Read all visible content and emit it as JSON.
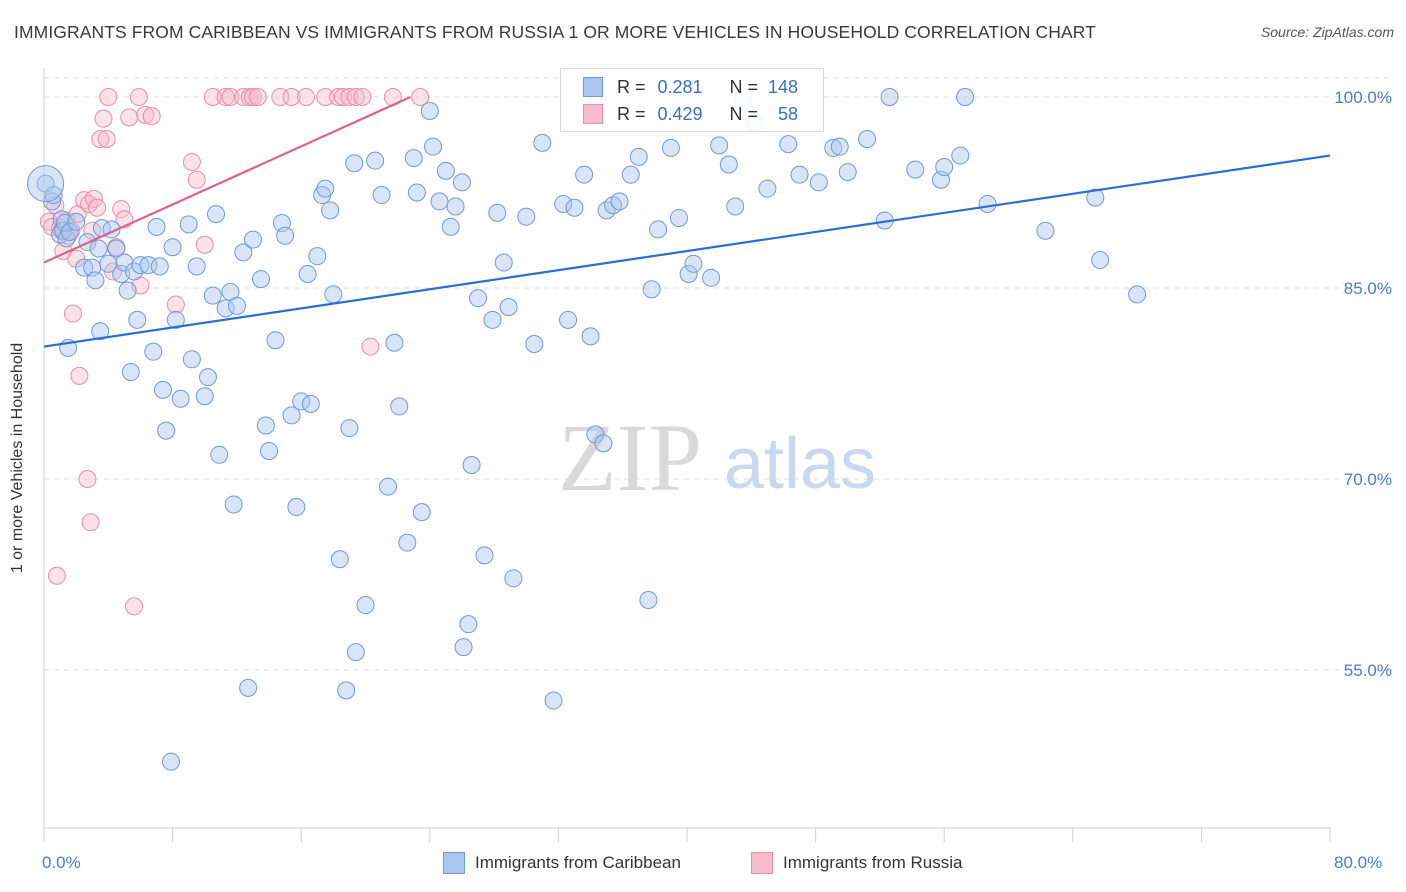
{
  "title": "IMMIGRANTS FROM CARIBBEAN VS IMMIGRANTS FROM RUSSIA 1 OR MORE VEHICLES IN HOUSEHOLD CORRELATION CHART",
  "source": "Source: ZipAtlas.com",
  "watermark": {
    "zip": "ZIP",
    "atlas": "atlas"
  },
  "legend": {
    "r_label": "R =",
    "n_label": "N =",
    "rows": [
      {
        "r": "0.281",
        "n": "148"
      },
      {
        "r": "0.429",
        "n": "58"
      }
    ]
  },
  "colors": {
    "blue_fill": "#aac6ee",
    "blue_stroke": "#6f9ad8",
    "blue_line": "#2a6fd0",
    "pink_fill": "#f6bccd",
    "pink_stroke": "#e98eab",
    "pink_line": "#e0608e",
    "tick_text": "#4a7cd0"
  },
  "chart_data": {
    "type": "scatter",
    "title": "IMMIGRANTS FROM CARIBBEAN VS IMMIGRANTS FROM RUSSIA 1 OR MORE VEHICLES IN HOUSEHOLD CORRELATION CHART",
    "xlabel": "",
    "ylabel": "1 or more Vehicles in Household",
    "xlim": [
      0,
      80
    ],
    "ylim": [
      42,
      101.5
    ],
    "x_tick_labels": [
      "0.0%",
      "80.0%"
    ],
    "y_ticks": [
      55,
      70,
      85,
      100
    ],
    "y_tick_labels": [
      "55.0%",
      "70.0%",
      "85.0%",
      "100.0%"
    ],
    "grid": "horizontal dashed",
    "legend_position": "top-center",
    "series": [
      {
        "name": "Immigrants from Caribbean",
        "color": "#aac6ee",
        "R": 0.281,
        "N": 148,
        "trend": {
          "x": [
            0,
            80
          ],
          "y": [
            80.4,
            95.4
          ]
        },
        "points": [
          [
            0.1,
            93.2
          ],
          [
            0.5,
            91.8
          ],
          [
            0.6,
            92.3
          ],
          [
            1.0,
            89.2
          ],
          [
            1.1,
            90.4
          ],
          [
            1.2,
            89.5
          ],
          [
            1.3,
            90.1
          ],
          [
            1.4,
            88.9
          ],
          [
            1.5,
            80.3
          ],
          [
            1.6,
            89.4
          ],
          [
            2.0,
            90.2
          ],
          [
            2.5,
            86.6
          ],
          [
            2.7,
            88.6
          ],
          [
            3.0,
            86.6
          ],
          [
            3.2,
            85.6
          ],
          [
            3.4,
            88.1
          ],
          [
            3.5,
            81.6
          ],
          [
            3.6,
            89.7
          ],
          [
            4.0,
            86.9
          ],
          [
            4.2,
            89.6
          ],
          [
            4.5,
            88.1
          ],
          [
            4.8,
            86.1
          ],
          [
            5.0,
            87.0
          ],
          [
            5.2,
            84.8
          ],
          [
            5.4,
            78.4
          ],
          [
            5.6,
            86.3
          ],
          [
            5.8,
            82.5
          ],
          [
            6.0,
            86.8
          ],
          [
            6.5,
            86.8
          ],
          [
            6.8,
            80.0
          ],
          [
            7.0,
            89.8
          ],
          [
            7.2,
            86.7
          ],
          [
            7.4,
            77.0
          ],
          [
            7.6,
            73.8
          ],
          [
            8.0,
            88.2
          ],
          [
            8.2,
            82.5
          ],
          [
            8.5,
            76.3
          ],
          [
            9.0,
            90.0
          ],
          [
            9.2,
            79.4
          ],
          [
            9.5,
            86.7
          ],
          [
            10.0,
            76.5
          ],
          [
            10.2,
            78.0
          ],
          [
            10.5,
            84.4
          ],
          [
            10.7,
            90.8
          ],
          [
            10.9,
            71.9
          ],
          [
            11.3,
            83.4
          ],
          [
            11.6,
            84.7
          ],
          [
            11.8,
            68.0
          ],
          [
            12.0,
            83.6
          ],
          [
            12.4,
            87.8
          ],
          [
            12.7,
            53.6
          ],
          [
            13.0,
            88.8
          ],
          [
            13.5,
            85.7
          ],
          [
            13.8,
            74.2
          ],
          [
            14.0,
            72.2
          ],
          [
            14.4,
            80.9
          ],
          [
            14.8,
            90.1
          ],
          [
            15.0,
            89.1
          ],
          [
            15.4,
            75.0
          ],
          [
            15.7,
            67.8
          ],
          [
            16.0,
            76.1
          ],
          [
            16.4,
            86.1
          ],
          [
            16.6,
            75.9
          ],
          [
            17.0,
            87.5
          ],
          [
            17.3,
            92.3
          ],
          [
            17.5,
            92.8
          ],
          [
            17.8,
            91.1
          ],
          [
            18.0,
            84.5
          ],
          [
            18.4,
            63.7
          ],
          [
            18.8,
            53.4
          ],
          [
            19.0,
            74.0
          ],
          [
            19.3,
            94.8
          ],
          [
            20.0,
            60.1
          ],
          [
            20.6,
            95.0
          ],
          [
            21.0,
            92.3
          ],
          [
            21.4,
            69.4
          ],
          [
            21.8,
            80.7
          ],
          [
            22.1,
            75.7
          ],
          [
            22.6,
            65.0
          ],
          [
            23.0,
            95.2
          ],
          [
            23.2,
            92.5
          ],
          [
            23.5,
            67.4
          ],
          [
            24.0,
            98.9
          ],
          [
            24.2,
            96.1
          ],
          [
            24.6,
            91.8
          ],
          [
            25.0,
            94.2
          ],
          [
            25.3,
            89.8
          ],
          [
            25.6,
            91.4
          ],
          [
            26.0,
            93.3
          ],
          [
            26.6,
            71.1
          ],
          [
            27.0,
            84.2
          ],
          [
            27.4,
            64.0
          ],
          [
            27.9,
            82.5
          ],
          [
            28.2,
            90.9
          ],
          [
            28.6,
            87.0
          ],
          [
            28.9,
            83.5
          ],
          [
            29.2,
            62.2
          ],
          [
            30.0,
            90.6
          ],
          [
            30.5,
            80.6
          ],
          [
            31.0,
            96.4
          ],
          [
            31.7,
            52.6
          ],
          [
            32.3,
            91.6
          ],
          [
            32.6,
            82.5
          ],
          [
            33.0,
            91.3
          ],
          [
            33.6,
            93.9
          ],
          [
            34.0,
            81.2
          ],
          [
            34.3,
            73.5
          ],
          [
            34.8,
            72.8
          ],
          [
            35.0,
            91.1
          ],
          [
            35.4,
            91.5
          ],
          [
            35.8,
            91.8
          ],
          [
            36.5,
            93.9
          ],
          [
            37.0,
            95.3
          ],
          [
            37.6,
            60.5
          ],
          [
            37.8,
            84.9
          ],
          [
            38.2,
            89.6
          ],
          [
            39.0,
            96.0
          ],
          [
            39.5,
            90.5
          ],
          [
            40.1,
            86.1
          ],
          [
            40.4,
            86.9
          ],
          [
            41.5,
            85.8
          ],
          [
            42.0,
            96.2
          ],
          [
            42.6,
            94.7
          ],
          [
            43.0,
            91.4
          ],
          [
            43.5,
            99.9
          ],
          [
            44.2,
            98.0
          ],
          [
            45.0,
            92.8
          ],
          [
            46.3,
            96.3
          ],
          [
            47.0,
            93.9
          ],
          [
            48.2,
            93.3
          ],
          [
            49.1,
            96.0
          ],
          [
            49.5,
            96.1
          ],
          [
            50.0,
            94.1
          ],
          [
            51.2,
            96.7
          ],
          [
            52.3,
            90.3
          ],
          [
            52.6,
            100.0
          ],
          [
            54.2,
            94.3
          ],
          [
            55.8,
            93.5
          ],
          [
            56.0,
            94.5
          ],
          [
            57.0,
            95.4
          ],
          [
            57.3,
            100.0
          ],
          [
            58.7,
            91.6
          ],
          [
            62.3,
            89.5
          ],
          [
            65.4,
            92.1
          ],
          [
            65.7,
            87.2
          ],
          [
            68.0,
            84.5
          ],
          [
            19.4,
            56.4
          ],
          [
            26.1,
            56.8
          ],
          [
            26.4,
            58.6
          ],
          [
            7.9,
            47.8
          ]
        ]
      },
      {
        "name": "Immigrants from Russia",
        "color": "#f6bccd",
        "R": 0.429,
        "N": 58,
        "trend": {
          "x": [
            0,
            22.8
          ],
          "y": [
            87.0,
            100.0
          ]
        },
        "points": [
          [
            0.3,
            90.2
          ],
          [
            0.5,
            89.8
          ],
          [
            0.7,
            91.5
          ],
          [
            0.8,
            62.4
          ],
          [
            1.0,
            89.7
          ],
          [
            1.1,
            89.5
          ],
          [
            1.2,
            87.9
          ],
          [
            1.4,
            90.3
          ],
          [
            1.5,
            89.1
          ],
          [
            1.7,
            89.5
          ],
          [
            1.8,
            83.0
          ],
          [
            2.0,
            87.3
          ],
          [
            2.1,
            90.8
          ],
          [
            2.2,
            78.1
          ],
          [
            2.5,
            91.9
          ],
          [
            2.7,
            70.0
          ],
          [
            2.8,
            91.6
          ],
          [
            2.9,
            66.6
          ],
          [
            3.0,
            89.5
          ],
          [
            3.1,
            92.0
          ],
          [
            3.3,
            91.3
          ],
          [
            3.5,
            96.7
          ],
          [
            3.7,
            98.3
          ],
          [
            3.9,
            96.7
          ],
          [
            4.0,
            100.0
          ],
          [
            4.3,
            86.3
          ],
          [
            4.5,
            88.2
          ],
          [
            4.8,
            91.2
          ],
          [
            5.0,
            90.4
          ],
          [
            5.3,
            98.4
          ],
          [
            5.6,
            60.0
          ],
          [
            5.9,
            100.0
          ],
          [
            6.0,
            85.2
          ],
          [
            6.3,
            98.6
          ],
          [
            6.7,
            98.5
          ],
          [
            8.2,
            83.7
          ],
          [
            9.2,
            94.9
          ],
          [
            9.5,
            93.5
          ],
          [
            10.0,
            88.4
          ],
          [
            10.5,
            100.0
          ],
          [
            11.3,
            100.0
          ],
          [
            11.6,
            100.0
          ],
          [
            12.4,
            100.0
          ],
          [
            12.8,
            100.0
          ],
          [
            13.0,
            100.0
          ],
          [
            13.3,
            100.0
          ],
          [
            14.7,
            100.0
          ],
          [
            15.4,
            100.0
          ],
          [
            16.3,
            100.0
          ],
          [
            17.5,
            100.0
          ],
          [
            18.3,
            100.0
          ],
          [
            18.6,
            100.0
          ],
          [
            19.0,
            100.0
          ],
          [
            19.4,
            100.0
          ],
          [
            19.8,
            100.0
          ],
          [
            20.3,
            80.4
          ],
          [
            21.7,
            100.0
          ],
          [
            23.4,
            100.0
          ]
        ]
      }
    ]
  },
  "legend_bottom": [
    "Immigrants from Caribbean",
    "Immigrants from Russia"
  ]
}
